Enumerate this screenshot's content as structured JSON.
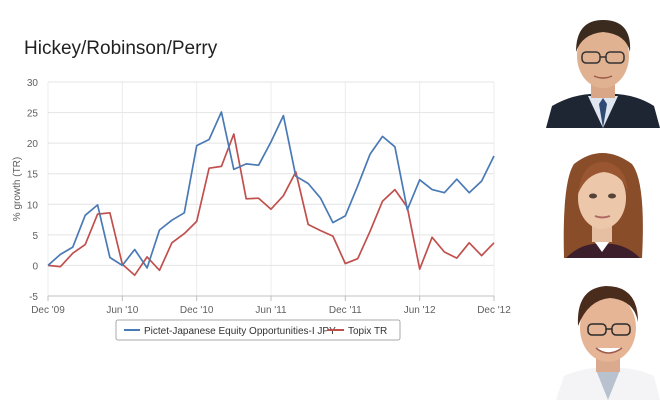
{
  "header": {
    "title": "Hickey/Robinson/Perry"
  },
  "chart_data": {
    "type": "line",
    "ylabel": "% growth (TR)",
    "xlabel": "",
    "ylim": [
      -5,
      30
    ],
    "yticks": [
      -5,
      0,
      5,
      10,
      15,
      20,
      25,
      30
    ],
    "grid": true,
    "legend_position": "bottom",
    "x_tick_labels": [
      {
        "label": "Dec '09",
        "index": 0
      },
      {
        "label": "Jun '10",
        "index": 6
      },
      {
        "label": "Dec '10",
        "index": 12
      },
      {
        "label": "Jun '11",
        "index": 18
      },
      {
        "label": "Dec '11",
        "index": 24
      },
      {
        "label": "Jun '12",
        "index": 30
      },
      {
        "label": "Dec '12",
        "index": 36
      }
    ],
    "series": [
      {
        "name": "Pictet-Japanese Equity Opportunities-I JPY",
        "color": "#4a7ab5",
        "values": [
          0,
          1.8,
          3,
          8.2,
          9.9,
          1.3,
          0,
          2.6,
          -0.4,
          5.8,
          7.4,
          8.6,
          19.6,
          20.6,
          25.1,
          15.7,
          16.6,
          16.4,
          20.2,
          24.5,
          14.6,
          13.4,
          11,
          7,
          8.1,
          13,
          18.2,
          21.1,
          19.4,
          9.1,
          14,
          12.4,
          11.9,
          14.1,
          11.9,
          13.8,
          17.9
        ]
      },
      {
        "name": "Topix TR",
        "color": "#c0504d",
        "values": [
          0,
          -0.2,
          2,
          3.4,
          8.4,
          8.6,
          0.2,
          -1.6,
          1.4,
          -0.8,
          3.7,
          5.2,
          7.2,
          15.9,
          16.2,
          21.5,
          10.9,
          11,
          9.2,
          11.4,
          15.3,
          6.7,
          5.7,
          4.8,
          0.3,
          1.1,
          5.6,
          10.5,
          12.4,
          9.5,
          -0.6,
          4.6,
          2.2,
          1.2,
          3.7,
          1.6,
          3.7
        ]
      }
    ]
  },
  "portraits": [
    {
      "label": "portrait-1"
    },
    {
      "label": "portrait-2"
    },
    {
      "label": "portrait-3"
    }
  ]
}
